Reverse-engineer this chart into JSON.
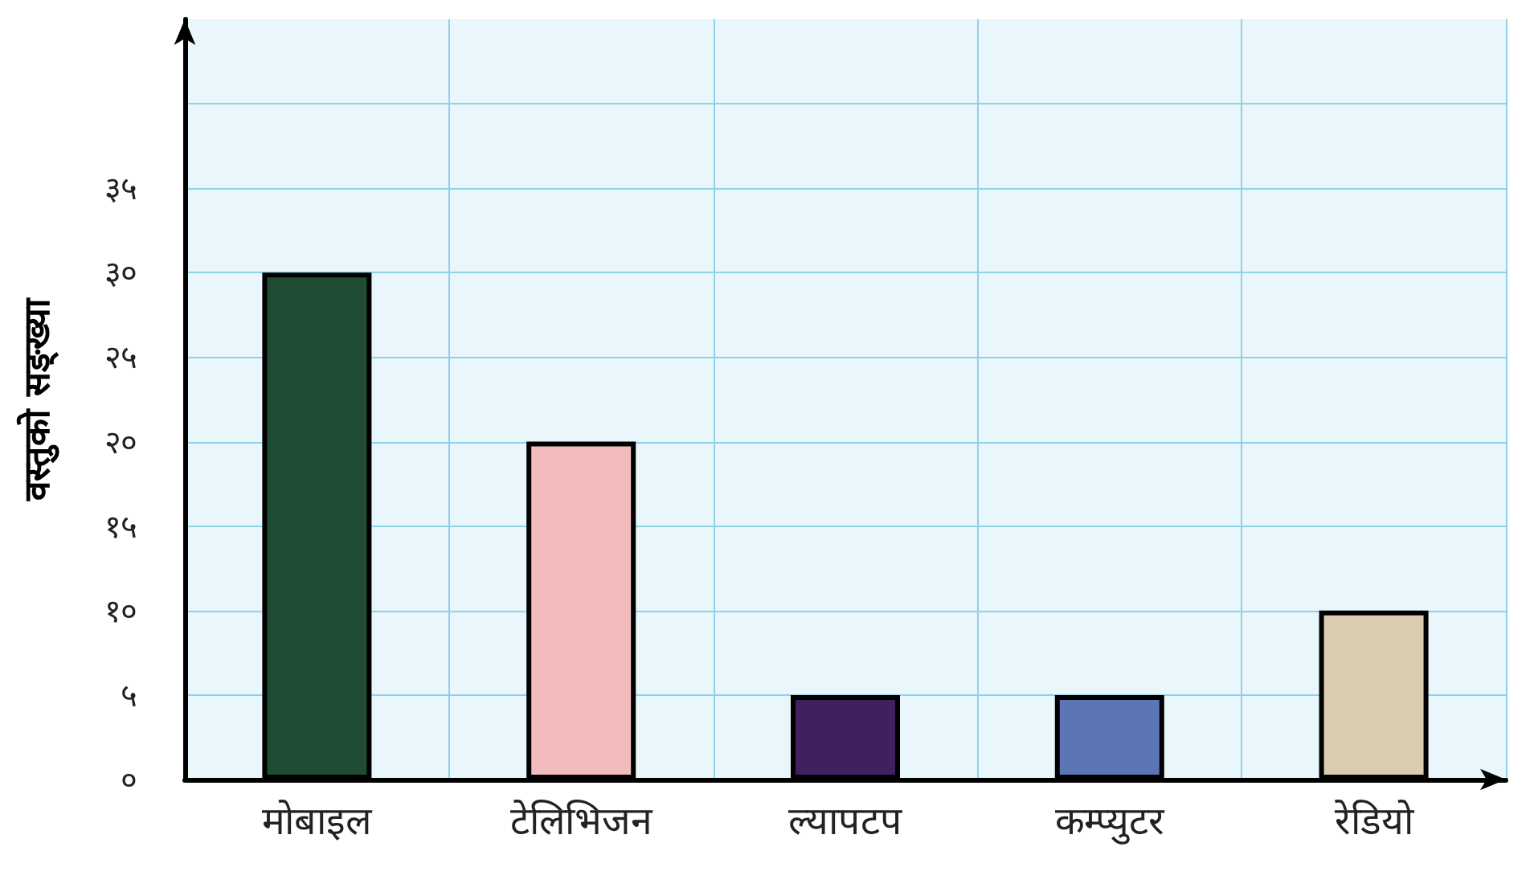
{
  "chart_data": {
    "type": "bar",
    "ylabel": "वस्तुको सङ्ख्या",
    "categories": [
      "मोबाइल",
      "टेलिभिजन",
      "ल्यापटप",
      "कम्प्युटर",
      "रेडियो"
    ],
    "values": [
      30,
      20,
      5,
      5,
      10
    ],
    "colors": [
      "#1f4d33",
      "#f2bcbc",
      "#40205e",
      "#5b75b5",
      "#d9ccb0"
    ],
    "ylim": [
      0,
      45
    ],
    "yticks": [
      {
        "value": 0,
        "label": "०"
      },
      {
        "value": 5,
        "label": "५"
      },
      {
        "value": 10,
        "label": "१०"
      },
      {
        "value": 15,
        "label": "१५"
      },
      {
        "value": 20,
        "label": "२०"
      },
      {
        "value": 25,
        "label": "२५"
      },
      {
        "value": 30,
        "label": "३०"
      },
      {
        "value": 35,
        "label": "३५"
      },
      {
        "value": 40,
        "label": null
      }
    ],
    "grid": true
  }
}
